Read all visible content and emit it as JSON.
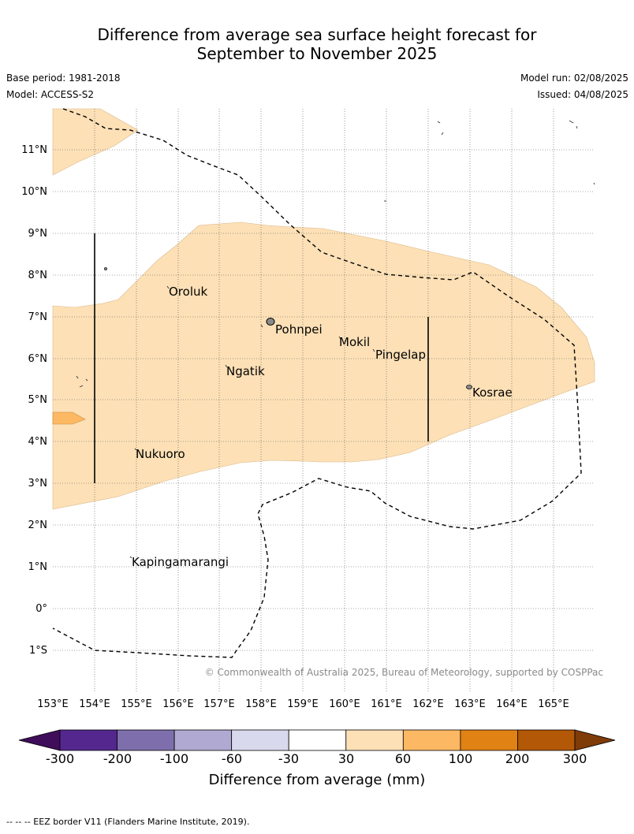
{
  "header": {
    "title_line1": "Difference from average sea surface height forecast for",
    "title_line2": "September to November 2025",
    "base_period": "Base period: 1981-2018",
    "model": "Model: ACCESS-S2",
    "model_run": "Model run: 02/08/2025",
    "issued": "Issued: 04/08/2025"
  },
  "map": {
    "lat_labels": [
      "11°N",
      "10°N",
      "9°N",
      "8°N",
      "7°N",
      "6°N",
      "5°N",
      "4°N",
      "3°N",
      "2°N",
      "1°N",
      "0°",
      "1°S"
    ],
    "lon_labels": [
      "153°E",
      "154°E",
      "155°E",
      "156°E",
      "157°E",
      "158°E",
      "159°E",
      "160°E",
      "161°E",
      "162°E",
      "163°E",
      "164°E",
      "165°E"
    ],
    "places": [
      {
        "name": "Oroluk",
        "lon": 155.8,
        "lat": 7.6
      },
      {
        "name": "Pohnpei",
        "lon": 158.3,
        "lat": 6.9
      },
      {
        "name": "Mokil",
        "lon": 159.8,
        "lat": 6.7
      },
      {
        "name": "Pingelap",
        "lon": 160.7,
        "lat": 6.2
      },
      {
        "name": "Ngatik",
        "lon": 157.1,
        "lat": 5.8
      },
      {
        "name": "Kosrae",
        "lon": 163.0,
        "lat": 5.3
      },
      {
        "name": "Nukuoro",
        "lon": 154.9,
        "lat": 3.9
      },
      {
        "name": "Kapingamarangi",
        "lon": 154.8,
        "lat": 1.1
      }
    ],
    "copyright": "© Commonwealth of Australia 2025, Bureau of Meteorology, supported by COSPPac"
  },
  "legend": {
    "title": "Difference from average (mm)",
    "ticks": [
      "-300",
      "-200",
      "-100",
      "-60",
      "-30",
      "30",
      "60",
      "100",
      "200",
      "300"
    ],
    "colors": [
      "#3f0d5a",
      "#54278f",
      "#7e6fac",
      "#b0aad2",
      "#d9d9ee",
      "#ffffff",
      "#fde0b6",
      "#fdb863",
      "#e08214",
      "#b35806",
      "#7f3b08"
    ]
  },
  "footnote": "--  --  -- EEZ border V11 (Flanders Marine Institute, 2019)."
}
